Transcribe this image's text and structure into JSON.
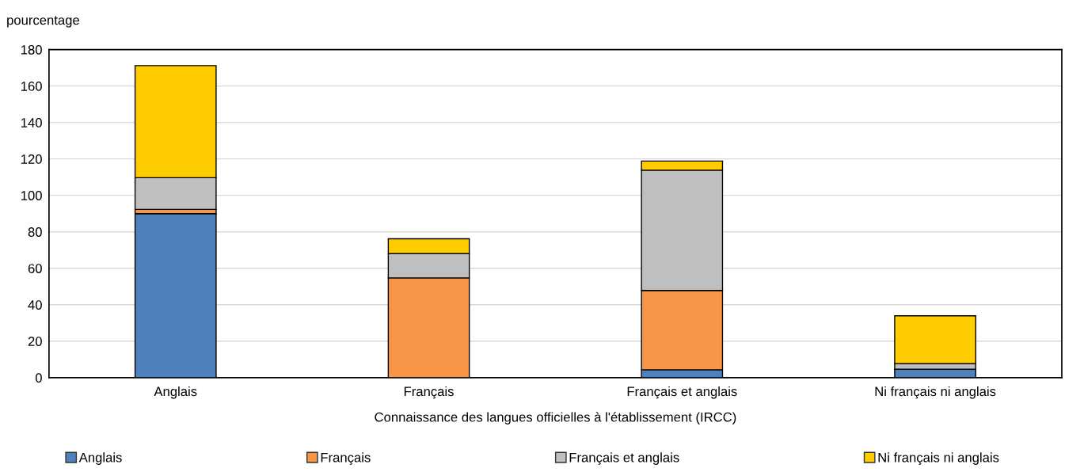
{
  "chart_data": {
    "type": "bar",
    "stacked": true,
    "ylabel": "pourcentage",
    "xlabel": "Connaissance des langues officielles à l'établissement (IRCC)",
    "categories": [
      "Anglais",
      "Français",
      "Français et anglais",
      "Ni français ni anglais"
    ],
    "series": [
      {
        "name": "Anglais",
        "color": "#4f81bd",
        "values": [
          90,
          0,
          4.3,
          4.6
        ]
      },
      {
        "name": "Français",
        "color": "#f79646",
        "values": [
          2.3,
          54.7,
          43.5,
          0
        ]
      },
      {
        "name": "Français et anglais",
        "color": "#bfbfbf",
        "values": [
          17.4,
          13.3,
          66,
          3
        ]
      },
      {
        "name": "Ni français ni anglais",
        "color": "#ffcc00",
        "values": [
          61.5,
          8.2,
          5,
          26.3
        ]
      }
    ],
    "ylim": [
      0,
      180
    ],
    "yticks": [
      0,
      20,
      40,
      60,
      80,
      100,
      120,
      140,
      160,
      180
    ],
    "grid": "y",
    "legend": "bottom"
  }
}
